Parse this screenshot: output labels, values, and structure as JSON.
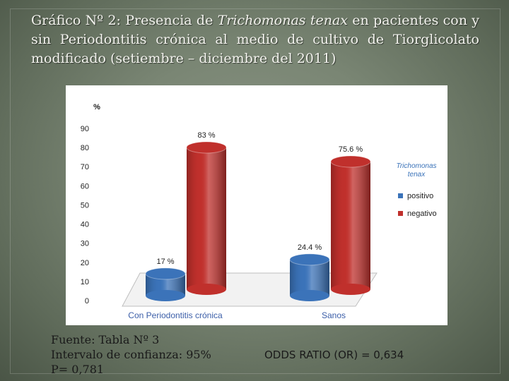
{
  "slide": {
    "title_part1": "Gráfico Nº 2: Presencia de ",
    "title_italic": "Trichomonas tenax",
    "title_part2": " en pacientes con y sin Periodontitis crónica al medio de cultivo de Tiorglicolato modificado (setiembre – diciembre del 2011)"
  },
  "footer": {
    "source": "Fuente: Tabla Nº 3",
    "confidence": "Intervalo de confianza: 95%",
    "p_value": "P= 0,781",
    "odds_ratio": "ODDS RATIO (OR) = 0,634"
  },
  "chart_data": {
    "type": "bar",
    "ylabel": "%",
    "ylim": [
      0,
      90
    ],
    "yticks": [
      0,
      10,
      20,
      30,
      40,
      50,
      60,
      70,
      80,
      90
    ],
    "categories": [
      "Con Periodontitis crónica",
      "Sanos"
    ],
    "legend_title": "Trichomonas tenax",
    "legend_position": "right",
    "series": [
      {
        "name": "positivo",
        "color": "#3b73b9",
        "values": [
          17,
          24.4
        ],
        "labels": [
          "17 %",
          "24.4 %"
        ]
      },
      {
        "name": "negativo",
        "color": "#c0302c",
        "values": [
          83,
          75.6
        ],
        "labels": [
          "83 %",
          "75.6 %"
        ]
      }
    ],
    "category_label_color": "#3b5ea8"
  }
}
